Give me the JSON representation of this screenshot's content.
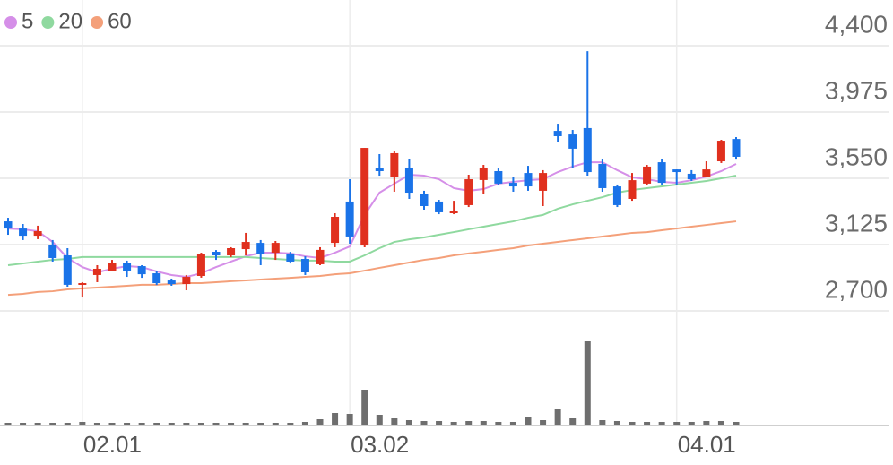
{
  "chart_data": {
    "type": "candlestick",
    "categories": [
      null,
      null,
      null,
      null,
      null,
      "02.01",
      null,
      null,
      null,
      null,
      null,
      null,
      null,
      null,
      null,
      null,
      null,
      null,
      null,
      null,
      null,
      null,
      null,
      "03.02",
      null,
      null,
      null,
      null,
      null,
      null,
      null,
      null,
      null,
      null,
      null,
      null,
      null,
      null,
      null,
      null,
      null,
      null,
      null,
      null,
      null,
      "04.01",
      null,
      null,
      null,
      null
    ],
    "open": [
      3274,
      3228,
      3182,
      3125,
      3056,
      2867,
      2930,
      2958,
      3010,
      2987,
      2941,
      2895,
      2872,
      2924,
      3079,
      3056,
      3096,
      3136,
      3073,
      3068,
      3033,
      2999,
      3136,
      3401,
      3119,
      3613,
      3561,
      3619,
      3447,
      3401,
      3326,
      3378,
      3539,
      3596,
      3521,
      3584,
      3470,
      3854,
      3831,
      3872,
      3642,
      3498,
      3418,
      3516,
      3653,
      3607,
      3579,
      3561,
      3659,
      3802
    ],
    "high": [
      3297,
      3257,
      3246,
      3154,
      3102,
      2884,
      2993,
      3027,
      3022,
      2993,
      2953,
      2907,
      2930,
      3073,
      3090,
      3108,
      3200,
      3154,
      3148,
      3079,
      3050,
      3108,
      3326,
      3544,
      3745,
      3705,
      3728,
      3671,
      3470,
      3412,
      3406,
      3573,
      3636,
      3613,
      3561,
      3630,
      3602,
      3900,
      3860,
      4365,
      3671,
      3510,
      3584,
      3636,
      3671,
      3607,
      3602,
      3659,
      3797,
      3814
    ],
    "low": [
      3188,
      3154,
      3160,
      3016,
      2855,
      2786,
      2884,
      2953,
      2918,
      2912,
      2866,
      2861,
      2832,
      2913,
      3027,
      3045,
      3056,
      2993,
      3027,
      3004,
      2930,
      2993,
      3108,
      3131,
      3108,
      3567,
      3464,
      3418,
      3349,
      3320,
      3320,
      3366,
      3447,
      3504,
      3464,
      3470,
      3372,
      3785,
      3619,
      3567,
      3464,
      3366,
      3406,
      3504,
      3510,
      3504,
      3533,
      3556,
      3648,
      3670
    ],
    "close": [
      3228,
      3182,
      3211,
      3039,
      2867,
      2878,
      2970,
      3010,
      2958,
      2935,
      2878,
      2872,
      2918,
      3062,
      3056,
      3102,
      3142,
      3062,
      3136,
      3016,
      2947,
      3091,
      3303,
      3177,
      3745,
      3596,
      3711,
      3458,
      3372,
      3332,
      3338,
      3544,
      3619,
      3516,
      3498,
      3498,
      3584,
      3820,
      3740,
      3590,
      3487,
      3378,
      3538,
      3625,
      3521,
      3590,
      3544,
      3607,
      3791,
      3688
    ],
    "up_color": "#e0301e",
    "down_color": "#1a73e8",
    "series": [
      {
        "name": "5",
        "color": "#d58fe8",
        "values": [
          3228,
          3223,
          3211,
          3142,
          3039,
          2981,
          2947,
          2970,
          2987,
          2981,
          2953,
          2930,
          2918,
          2941,
          2981,
          3016,
          3050,
          3073,
          3073,
          3068,
          3050,
          3039,
          3073,
          3113,
          3315,
          3458,
          3516,
          3573,
          3567,
          3544,
          3487,
          3470,
          3481,
          3516,
          3527,
          3538,
          3544,
          3590,
          3625,
          3653,
          3653,
          3602,
          3556,
          3544,
          3527,
          3521,
          3538,
          3561,
          3596,
          3642
        ]
      },
      {
        "name": "20",
        "color": "#8fd99f",
        "values": [
          2993,
          3004,
          3016,
          3027,
          3033,
          3045,
          3045,
          3045,
          3045,
          3045,
          3045,
          3045,
          3045,
          3045,
          3045,
          3045,
          3045,
          3039,
          3033,
          3027,
          3022,
          3022,
          3016,
          3016,
          3056,
          3102,
          3142,
          3159,
          3171,
          3188,
          3205,
          3223,
          3240,
          3257,
          3274,
          3297,
          3315,
          3355,
          3383,
          3406,
          3429,
          3458,
          3475,
          3487,
          3498,
          3510,
          3521,
          3533,
          3550,
          3567
        ]
      },
      {
        "name": "60",
        "color": "#f4a07a",
        "values": [
          2803,
          2809,
          2821,
          2826,
          2838,
          2844,
          2849,
          2855,
          2861,
          2867,
          2867,
          2872,
          2878,
          2878,
          2884,
          2890,
          2895,
          2901,
          2907,
          2912,
          2918,
          2924,
          2935,
          2941,
          2958,
          2976,
          2993,
          3010,
          3027,
          3039,
          3056,
          3068,
          3079,
          3091,
          3102,
          3119,
          3131,
          3142,
          3154,
          3165,
          3177,
          3188,
          3200,
          3205,
          3217,
          3228,
          3240,
          3251,
          3263,
          3274
        ]
      }
    ],
    "volume": [
      2,
      2,
      2,
      2,
      2,
      3,
      2,
      2,
      2,
      2,
      2,
      2,
      2,
      2,
      2,
      2,
      2,
      2,
      2,
      2,
      3,
      6,
      13,
      12,
      39,
      11,
      7,
      5,
      4,
      4,
      3,
      4,
      4,
      3,
      3,
      9,
      5,
      17,
      7,
      93,
      5,
      4,
      3,
      3,
      3,
      3,
      3,
      4,
      4,
      3
    ],
    "volume_color": "#6e6e6e",
    "ylim": [
      2700,
      4400
    ],
    "yticks": [
      {
        "value": 4400,
        "label": "4,400"
      },
      {
        "value": 3975,
        "label": "3,975"
      },
      {
        "value": 3550,
        "label": "3,550"
      },
      {
        "value": 3125,
        "label": "3,125"
      },
      {
        "value": 2700,
        "label": "2,700"
      }
    ],
    "grid": true
  }
}
